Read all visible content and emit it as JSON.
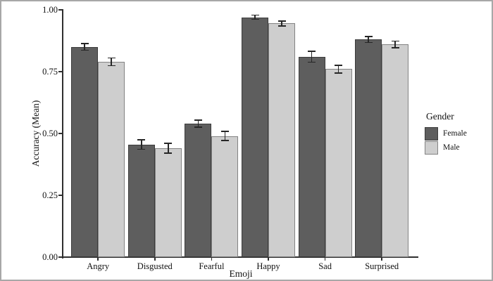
{
  "figure": {
    "background": "#ffffff",
    "frame_border_color": "#a8a8a8"
  },
  "chart_data": {
    "type": "bar",
    "title": "",
    "xlabel": "Emoji",
    "ylabel": "Accuracy (Mean)",
    "categories": [
      "Angry",
      "Disgusted",
      "Fearful",
      "Happy",
      "Sad",
      "Surprised"
    ],
    "series": [
      {
        "name": "Female",
        "fill": "#5e5e5e",
        "stroke": "#3b3b3b",
        "values": [
          0.85,
          0.455,
          0.54,
          0.97,
          0.81,
          0.88
        ],
        "errors": [
          0.013,
          0.019,
          0.014,
          0.008,
          0.022,
          0.012
        ]
      },
      {
        "name": "Male",
        "fill": "#cecece",
        "stroke": "#838383",
        "values": [
          0.79,
          0.44,
          0.49,
          0.945,
          0.76,
          0.86
        ],
        "errors": [
          0.016,
          0.02,
          0.018,
          0.01,
          0.016,
          0.013
        ]
      }
    ],
    "y_ticks": [
      "0.00",
      "0.25",
      "0.50",
      "0.75",
      "1.00"
    ],
    "y_tick_values": [
      0,
      0.25,
      0.5,
      0.75,
      1.0
    ],
    "ylim": [
      0,
      1
    ],
    "grid": false,
    "error_bars": true,
    "axis_color": "#2f2f2f",
    "error_bar_color": "#262626",
    "text_color": "#111111",
    "legend": {
      "title": "Gender",
      "position": "right",
      "entries": [
        "Female",
        "Male"
      ]
    }
  }
}
